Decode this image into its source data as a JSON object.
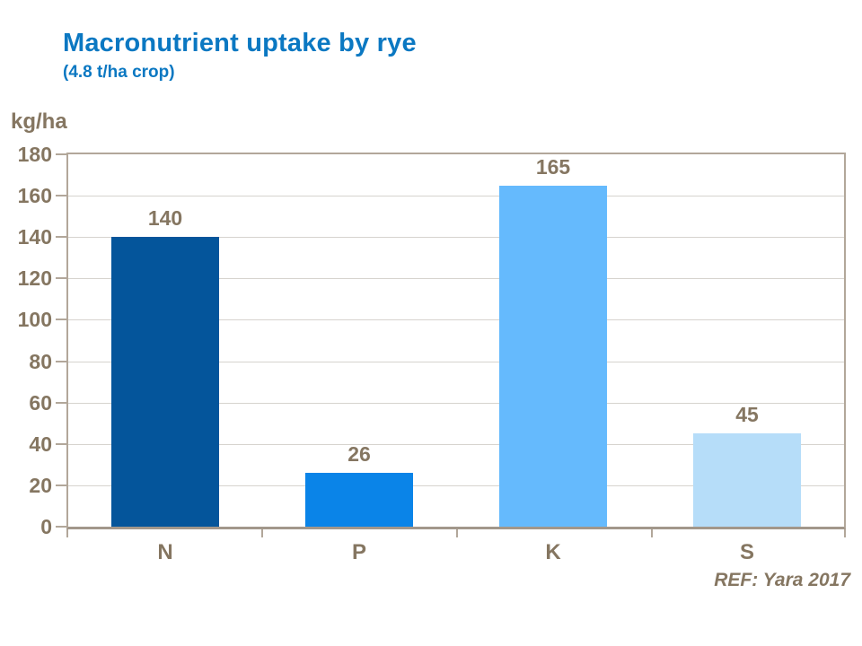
{
  "header": {
    "title": "Macronutrient uptake by rye",
    "subtitle": "(4.8 t/ha crop)"
  },
  "chart_data": {
    "type": "bar",
    "title": "Macronutrient uptake by rye",
    "subtitle": "(4.8 t/ha crop)",
    "unit_label": "kg/ha",
    "categories": [
      "N",
      "P",
      "K",
      "S"
    ],
    "values": [
      140,
      26,
      165,
      45
    ],
    "value_labels": [
      "140",
      "26",
      "165",
      "45"
    ],
    "bar_colors": [
      "#04559B",
      "#0A84E8",
      "#65BAFD",
      "#B6DDF9"
    ],
    "ylim": [
      0,
      180
    ],
    "yticks": [
      0,
      20,
      40,
      60,
      80,
      100,
      120,
      140,
      160,
      180
    ],
    "grid": "horizontal",
    "legend": "none",
    "xlabel": "",
    "ylabel": "kg/ha"
  },
  "footer": {
    "reference": "REF: Yara 2017"
  },
  "colors": {
    "title_blue": "#0B78C2",
    "text_brown": "#857661",
    "axis_line": "#B2A79A",
    "baseline": "#A2978B",
    "gridline": "#D6D3CE",
    "background": "#FFFFFF"
  }
}
